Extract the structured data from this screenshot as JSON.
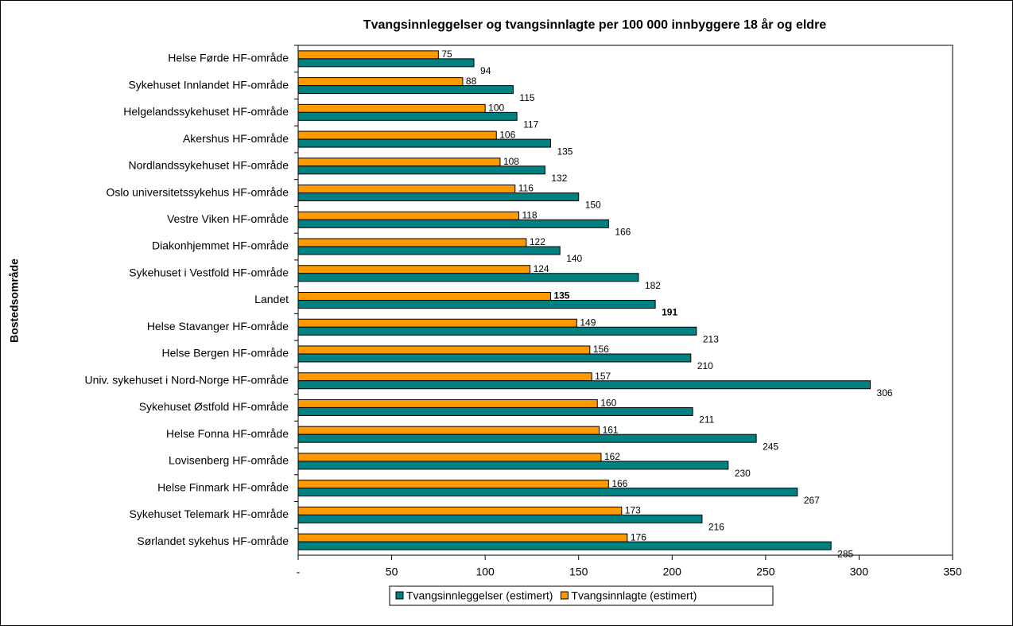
{
  "chart_data": {
    "type": "hbar",
    "title": "Tvangsinnleggelser og tvangsinnlagte per 100 000 innbyggere 18 år og eldre",
    "y_label": "Bostedsområde",
    "categories": [
      "Helse Førde HF-område",
      "Sykehuset Innlandet HF-område",
      "Helgelandssykehuset HF-område",
      "Akershus HF-område",
      "Nordlandssykehuset HF-område",
      "Oslo universitetssykehus HF-område",
      "Vestre Viken HF-område",
      "Diakonhjemmet HF-område",
      "Sykehuset i Vestfold HF-område",
      "Landet",
      "Helse Stavanger HF-område",
      "Helse Bergen HF-område",
      "Univ. sykehuset i Nord-Norge HF-område",
      "Sykehuset Østfold HF-område",
      "Helse Fonna HF-område",
      "Lovisenberg HF-område",
      "Helse Finmark HF-område",
      "Sykehuset Telemark HF-område",
      "Sørlandet sykehus HF-område"
    ],
    "bold_categories": [
      "Landet"
    ],
    "series": [
      {
        "name": "Tvangsinnleggelser (estimert)",
        "color": "#008080",
        "values": [
          94,
          115,
          117,
          135,
          132,
          150,
          166,
          140,
          182,
          191,
          213,
          210,
          306,
          211,
          245,
          230,
          267,
          216,
          285
        ]
      },
      {
        "name": "Tvangsinnlagte (estimert)",
        "color": "#ff9900",
        "values": [
          75,
          88,
          100,
          106,
          108,
          116,
          118,
          122,
          124,
          135,
          149,
          156,
          157,
          160,
          161,
          162,
          166,
          173,
          176
        ]
      }
    ],
    "xlim": [
      0,
      350
    ],
    "xticks": [
      {
        "value": 0,
        "label": "-"
      },
      50,
      100,
      150,
      200,
      250,
      300,
      350
    ],
    "legend": "bottom"
  }
}
